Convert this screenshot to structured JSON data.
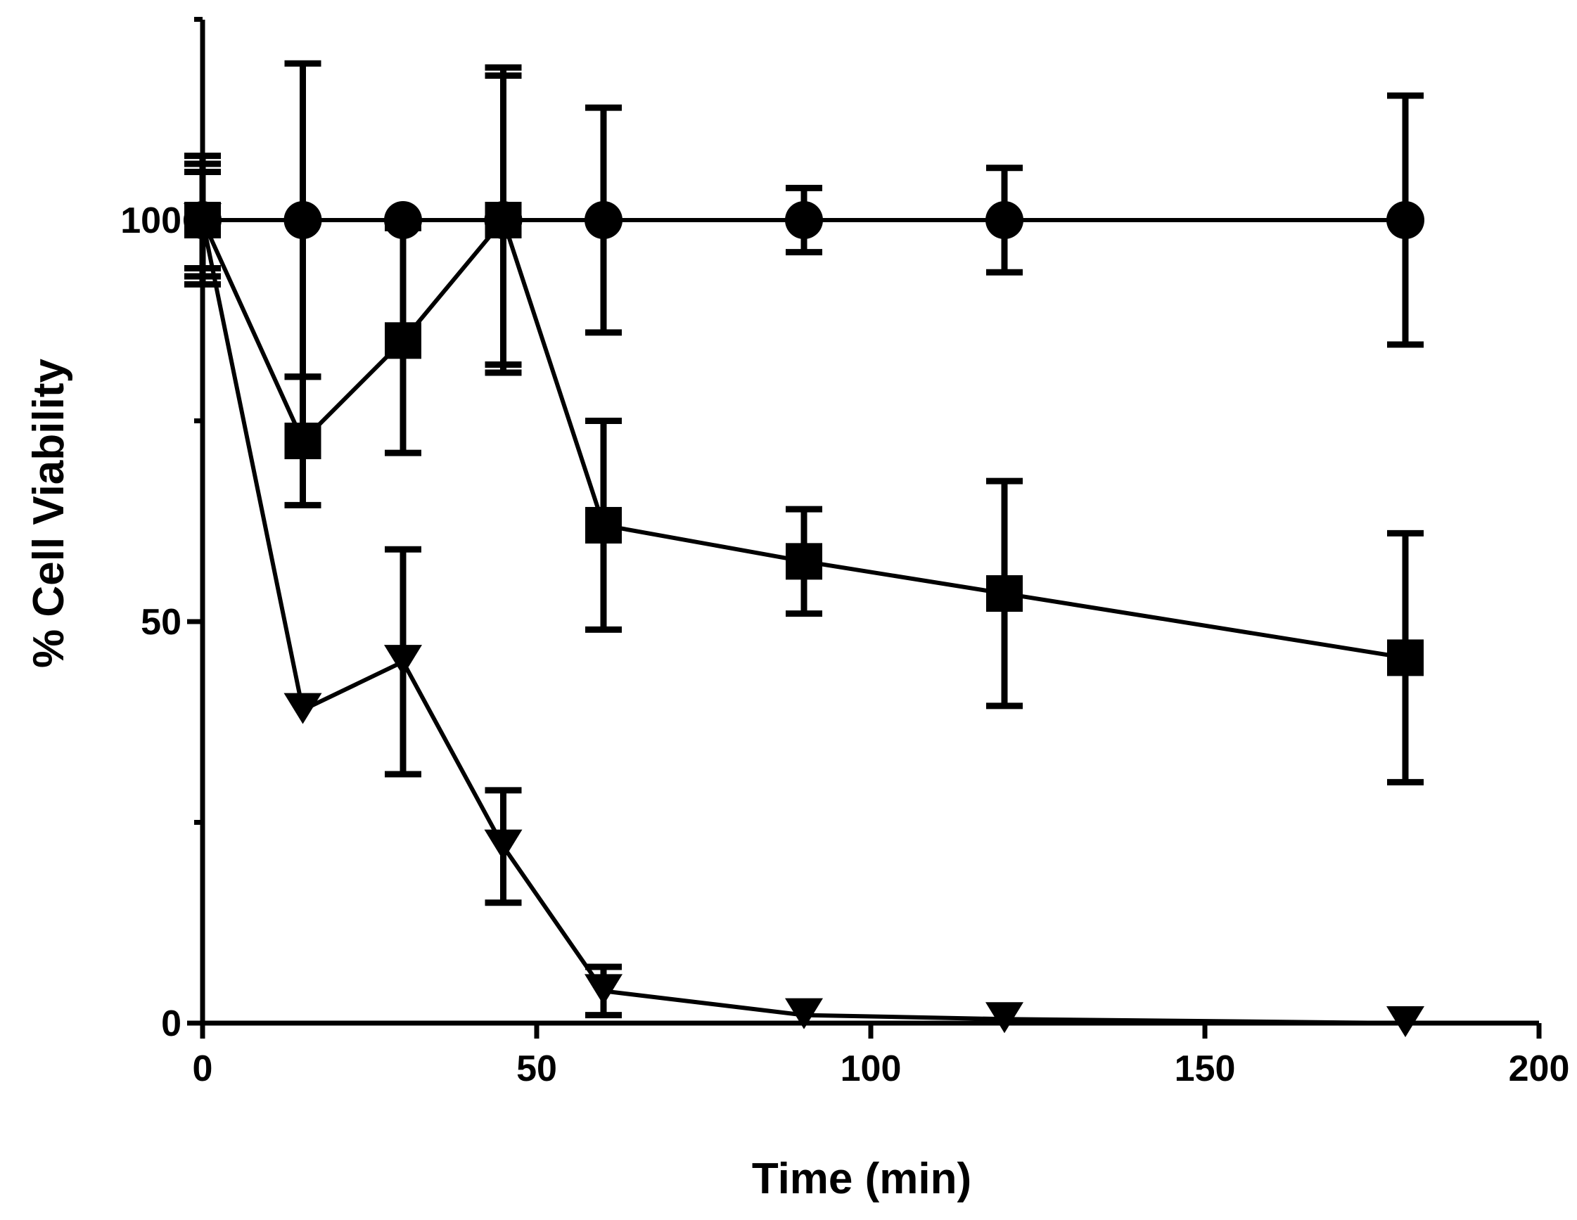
{
  "chart_data": {
    "type": "line",
    "title": "",
    "xlabel": "Time (min)",
    "ylabel": "% Cell Viability",
    "xlim": [
      0,
      200
    ],
    "ylim": [
      0,
      125
    ],
    "x_ticks": [
      0,
      50,
      100,
      150,
      200
    ],
    "x_tick_labels": [
      "0",
      "50",
      "100",
      "150",
      "200"
    ],
    "y_ticks": [
      0,
      50,
      100
    ],
    "y_tick_labels": [
      "0",
      "50",
      "100"
    ],
    "y_minor_ticks": [
      25,
      75,
      125
    ],
    "grid": false,
    "legend": "none",
    "color": "#000000",
    "series": [
      {
        "name": "circle series",
        "marker": "circle",
        "x": [
          0,
          15,
          30,
          45,
          60,
          90,
          120,
          180
        ],
        "y": [
          100,
          100,
          100,
          100,
          100,
          100,
          100,
          100
        ],
        "err": [
          8,
          19.5,
          0,
          19,
          14,
          4,
          6.5,
          15.5
        ]
      },
      {
        "name": "square series",
        "marker": "square",
        "x": [
          0,
          15,
          30,
          45,
          60,
          90,
          120,
          180
        ],
        "y": [
          100,
          72.5,
          85,
          100,
          62,
          57.5,
          53.5,
          45.5
        ],
        "err": [
          7,
          8,
          14,
          18,
          13,
          6.5,
          14,
          15.5
        ]
      },
      {
        "name": "triangle series",
        "marker": "triangle-down",
        "x": [
          0,
          15,
          30,
          45,
          60,
          90,
          120,
          180
        ],
        "y": [
          100,
          39,
          45,
          22,
          4,
          1,
          0.5,
          0
        ],
        "err": [
          6,
          0,
          14,
          7,
          3,
          0,
          0,
          0
        ]
      }
    ]
  }
}
